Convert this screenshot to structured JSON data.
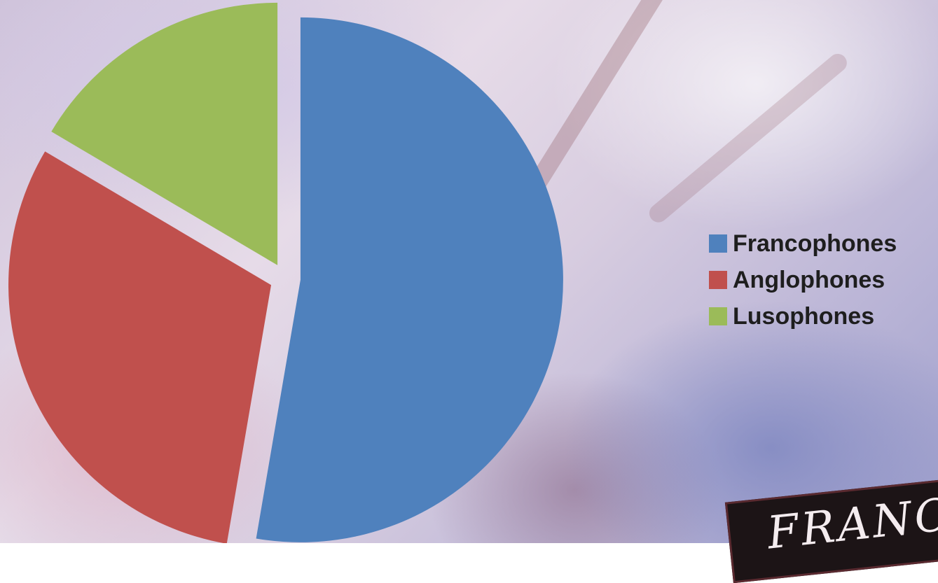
{
  "chart_data": {
    "type": "pie",
    "title": "",
    "labels": [
      "Francophones",
      "Anglophones",
      "Lusophones"
    ],
    "values": [
      52.7,
      30.8,
      16.5
    ],
    "colors": [
      "#4f81bd",
      "#c0504d",
      "#9bbb59"
    ],
    "exploded": true,
    "legend_position": "right"
  },
  "logo_text": "FRANC"
}
